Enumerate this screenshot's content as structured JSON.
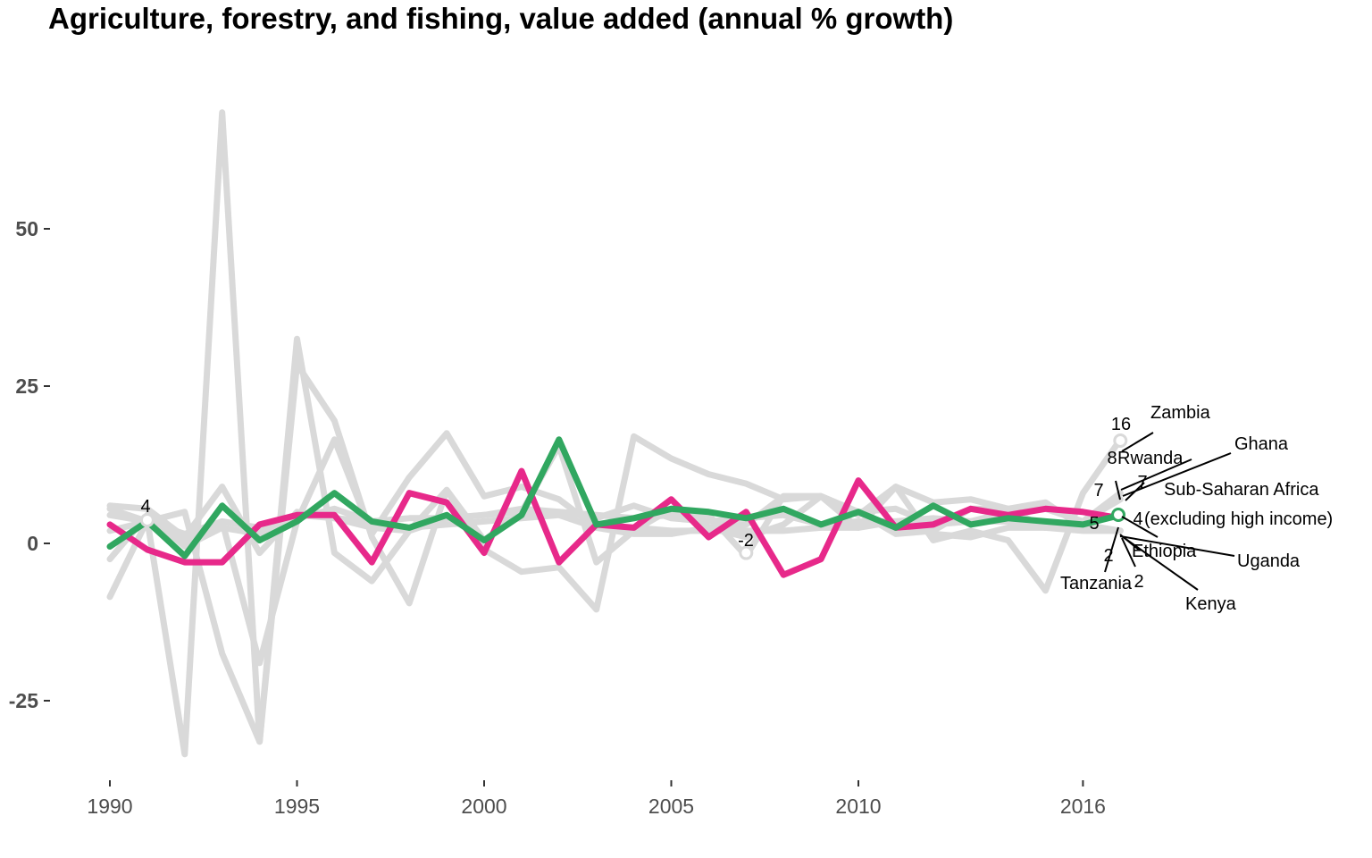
{
  "chart_data": {
    "type": "line",
    "title": "Agriculture, forestry, and fishing, value added (annual % growth)",
    "xlabel": "",
    "ylabel": "",
    "xlim": [
      1990,
      2023
    ],
    "ylim": [
      -37,
      80
    ],
    "x_ticks": [
      {
        "value": 1990,
        "label": "1990"
      },
      {
        "value": 1995,
        "label": "1995"
      },
      {
        "value": 2000,
        "label": "2000"
      },
      {
        "value": 2005,
        "label": "2005"
      },
      {
        "value": 2010,
        "label": "2010"
      },
      {
        "value": 2016,
        "label": "2016"
      }
    ],
    "y_ticks": [
      {
        "value": 50,
        "label": "50"
      },
      {
        "value": 25,
        "label": "25"
      },
      {
        "value": 0,
        "label": "0"
      },
      {
        "value": -25,
        "label": "-25"
      }
    ],
    "grid": false,
    "colors": {
      "background_series": "#d9d9d9",
      "highlight": "#e7298a",
      "region": "#31a760",
      "tick": "#333333",
      "tick_label": "#4d4d4d"
    },
    "x": [
      1990,
      1991,
      1992,
      1993,
      1994,
      1995,
      1996,
      1997,
      1998,
      1999,
      2000,
      2001,
      2002,
      2003,
      2004,
      2005,
      2006,
      2007,
      2008,
      2009,
      2010,
      2011,
      2012,
      2013,
      2014,
      2015,
      2016,
      2017
    ],
    "series": [
      {
        "name": "Zambia",
        "role": "background",
        "values": [
          -8.5,
          3.7,
          -33.5,
          68.5,
          -31.5,
          28.5,
          19.5,
          1.0,
          -9.5,
          8.5,
          -1.0,
          -4.5,
          -3.8,
          -10.5,
          17.0,
          13.5,
          11.0,
          9.5,
          7.0,
          7.5,
          2.5,
          9.0,
          0.5,
          2.0,
          0.5,
          -7.5,
          8.0,
          16.5
        ]
      },
      {
        "name": "Rwanda",
        "role": "background",
        "values": [
          5.5,
          3.5,
          5.0,
          -17.5,
          -31.5,
          32.5,
          -1.5,
          -6.0,
          2.0,
          8.5,
          0.5,
          5.0,
          15.5,
          -3.0,
          2.0,
          5.5,
          2.5,
          1.0,
          3.0,
          7.5,
          5.0,
          5.5,
          3.0,
          3.5,
          5.0,
          5.5,
          3.5,
          8.0
        ]
      },
      {
        "name": "Ghana",
        "role": "background",
        "values": [
          -2.5,
          4.5,
          -0.5,
          2.5,
          1.5,
          4.0,
          5.5,
          3.5,
          4.0,
          4.0,
          4.5,
          5.0,
          5.0,
          4.5,
          4.0,
          4.5,
          4.5,
          -2.0,
          7.5,
          7.5,
          5.0,
          1.5,
          2.0,
          5.5,
          5.5,
          2.5,
          3.5,
          7.0
        ]
      },
      {
        "name": "Tanzania",
        "role": "background",
        "values": [
          6.0,
          5.5,
          1.0,
          9.0,
          -1.5,
          5.0,
          4.0,
          2.5,
          2.0,
          4.0,
          4.5,
          5.5,
          5.0,
          4.0,
          6.0,
          4.0,
          3.5,
          4.0,
          4.5,
          3.0,
          3.5,
          3.5,
          4.0,
          3.5,
          3.5,
          2.5,
          2.0,
          2.0
        ]
      },
      {
        "name": "Ethiopia",
        "role": "background",
        "values": [
          2.0,
          3.5,
          0.5,
          3.5,
          -19.0,
          3.5,
          16.5,
          1.5,
          10.5,
          17.5,
          7.5,
          9.0,
          7.0,
          2.5,
          1.5,
          1.5,
          2.5,
          3.0,
          7.5,
          7.5,
          4.5,
          9.0,
          6.5,
          7.0,
          5.5,
          6.5,
          2.5,
          2.0
        ]
      },
      {
        "name": "Uganda",
        "role": "background",
        "values": [
          4.5,
          3.5,
          1.5,
          3.5,
          2.5,
          4.5,
          4.0,
          3.5,
          2.5,
          3.0,
          3.5,
          4.0,
          4.5,
          2.5,
          2.5,
          2.0,
          2.0,
          2.0,
          2.0,
          2.5,
          2.5,
          3.5,
          1.5,
          1.0,
          2.5,
          2.5,
          3.0,
          2.0
        ]
      },
      {
        "name": "Kenya",
        "role": "highlight",
        "values": [
          3.0,
          -1.0,
          -3.0,
          -3.0,
          3.0,
          4.5,
          4.5,
          -3.0,
          8.0,
          6.5,
          -1.5,
          11.5,
          -3.0,
          3.0,
          2.5,
          7.0,
          1.0,
          5.0,
          -5.0,
          -2.5,
          10.0,
          2.5,
          3.0,
          5.5,
          4.5,
          5.5,
          5.0,
          4.0
        ]
      },
      {
        "name": "Sub-Saharan Africa (excluding high income)",
        "role": "region",
        "values": [
          -0.5,
          3.5,
          -2.0,
          6.0,
          0.5,
          3.5,
          8.0,
          3.5,
          2.5,
          4.5,
          0.5,
          4.5,
          16.5,
          3.0,
          4.0,
          5.5,
          5.0,
          4.0,
          5.5,
          3.0,
          5.0,
          2.5,
          6.0,
          3.0,
          4.0,
          3.5,
          3.0,
          4.5
        ]
      }
    ],
    "annotations": [
      {
        "text": "4",
        "x": 1991,
        "y": 3.7
      },
      {
        "text": "-2",
        "x": 2007,
        "y": -1.5
      },
      {
        "text": "16"
      },
      {
        "text": "8"
      },
      {
        "text": "7"
      },
      {
        "text": "7"
      },
      {
        "text": "5"
      },
      {
        "text": "4"
      },
      {
        "text": "2"
      },
      {
        "text": "2"
      }
    ],
    "legend_labels": [
      "Zambia",
      "Rwanda",
      "Ghana",
      "Sub-Saharan Africa",
      "(excluding high income)",
      "Ethiopia",
      "Uganda",
      "Kenya",
      "Tanzania"
    ]
  }
}
